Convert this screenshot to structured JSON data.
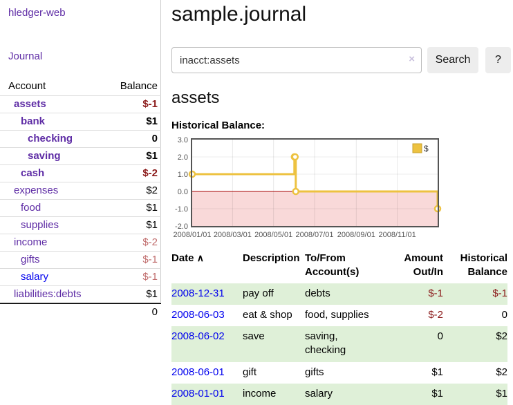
{
  "app": {
    "brand": "hledger-web",
    "nav_journal": "Journal"
  },
  "sidebar": {
    "headers": {
      "account": "Account",
      "balance": "Balance"
    },
    "rows": [
      {
        "account": "assets",
        "balance": "$-1"
      },
      {
        "account": "bank",
        "balance": "$1"
      },
      {
        "account": "checking",
        "balance": "0"
      },
      {
        "account": "saving",
        "balance": "$1"
      },
      {
        "account": "cash",
        "balance": "$-2"
      },
      {
        "account": "expenses",
        "balance": "$2"
      },
      {
        "account": "food",
        "balance": "$1"
      },
      {
        "account": "supplies",
        "balance": "$1"
      },
      {
        "account": "income",
        "balance": "$-2"
      },
      {
        "account": "gifts",
        "balance": "$-1"
      },
      {
        "account": "salary",
        "balance": "$-1"
      },
      {
        "account": "liabilities:debts",
        "balance": "$1"
      }
    ],
    "total": "0"
  },
  "header": {
    "title": "sample.journal"
  },
  "search": {
    "value": "inacct:assets",
    "clear_icon": "×",
    "search_label": "Search",
    "help_label": "?"
  },
  "account_page": {
    "heading": "assets",
    "chart_label": "Historical Balance:"
  },
  "chart_data": {
    "type": "line",
    "step": true,
    "title": "Historical Balance",
    "series": [
      {
        "name": "$",
        "color": "#edc240",
        "points": [
          [
            "2008/01/01",
            1
          ],
          [
            "2008/06/01",
            2
          ],
          [
            "2008/06/02",
            2
          ],
          [
            "2008/06/03",
            0
          ],
          [
            "2008/12/31",
            -1
          ]
        ]
      }
    ],
    "x_range": [
      "2008/01/01",
      "2008/12/31"
    ],
    "x_ticks": [
      "2008/01/01",
      "2008/03/01",
      "2008/05/01",
      "2008/07/01",
      "2008/09/01",
      "2008/11/01"
    ],
    "y_ticks": [
      3.0,
      2.0,
      1.0,
      0.0,
      -1.0,
      -2.0
    ],
    "ylim": [
      -2,
      3
    ],
    "grid": true,
    "legend_position": "top-right",
    "negative_region_color": "#f9d9d9",
    "zero_line_color": "#a40000",
    "border_color": "#545454",
    "axis_label_color": "#545454"
  },
  "register": {
    "headers": {
      "date": "Date",
      "sort_icon": "∧",
      "description": "Description",
      "accounts": "To/From Account(s)",
      "amount": "Amount Out/In",
      "balance": "Historical Balance"
    },
    "rows": [
      {
        "date": "2008-12-31",
        "description": "pay off",
        "accounts": "debts",
        "amount": "$-1",
        "balance": "$-1"
      },
      {
        "date": "2008-06-03",
        "description": "eat & shop",
        "accounts": "food, supplies",
        "amount": "$-2",
        "balance": "0"
      },
      {
        "date": "2008-06-02",
        "description": "save",
        "accounts": "saving, checking",
        "amount": "0",
        "balance": "$2"
      },
      {
        "date": "2008-06-01",
        "description": "gift",
        "accounts": "gifts",
        "amount": "$1",
        "balance": "$2"
      },
      {
        "date": "2008-01-01",
        "description": "income",
        "accounts": "salary",
        "amount": "$1",
        "balance": "$1"
      }
    ]
  }
}
